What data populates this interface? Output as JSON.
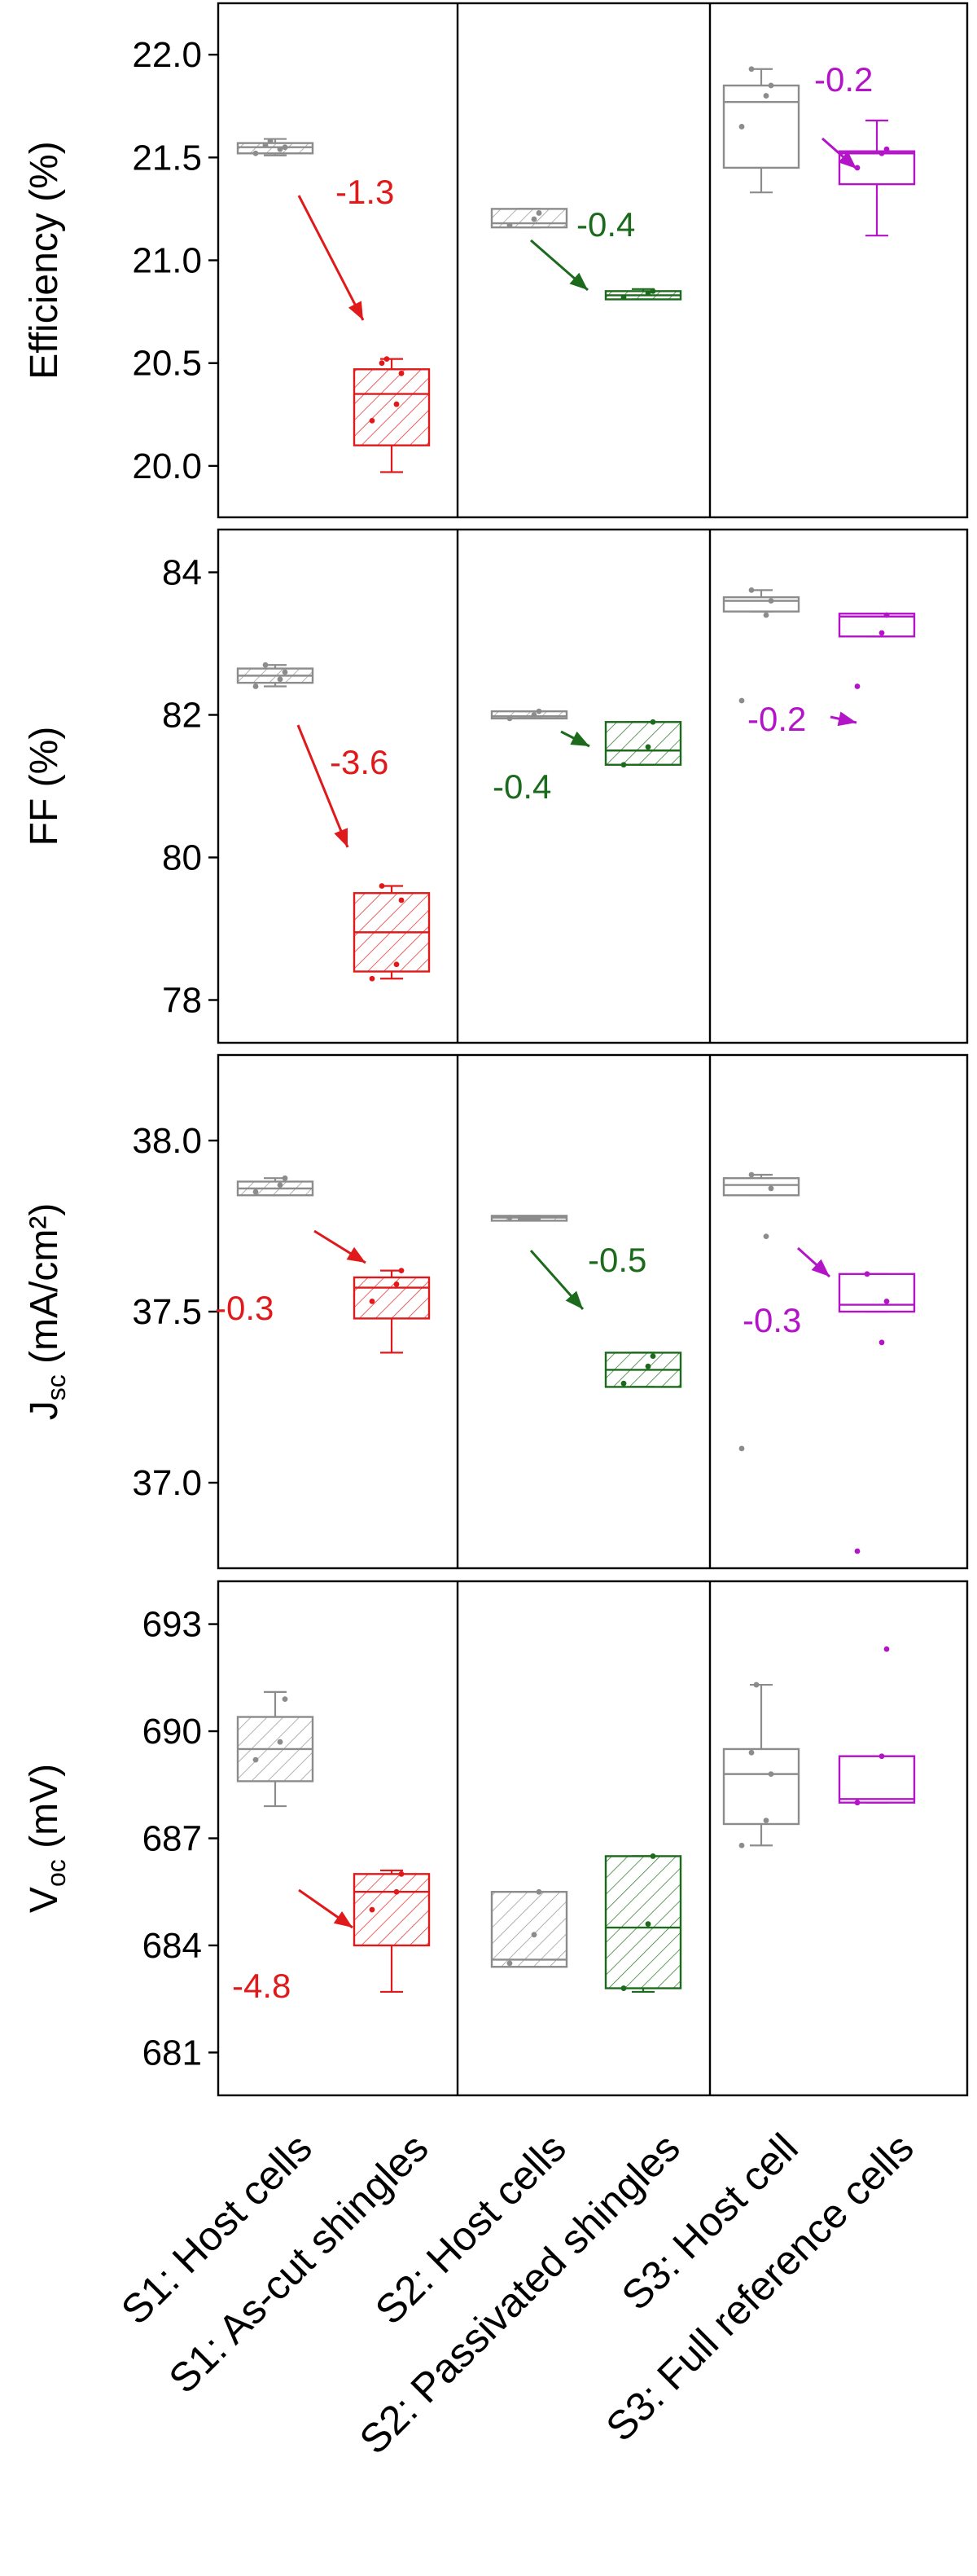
{
  "chart_data": {
    "type": "box",
    "categories": [
      "S1: Host cells",
      "S1: As-cut shingles",
      "S2: Host cells",
      "S2: Passivated shingles",
      "S3: Host cell",
      "S3: Full reference cells"
    ],
    "group_colors": [
      "#8c8c8c",
      "#e0191b",
      "#8c8c8c",
      "#1c6b1c",
      "#8c8c8c",
      "#b414c8"
    ],
    "hatched": [
      true,
      true,
      true,
      true,
      false,
      false
    ],
    "panels": [
      {
        "ylabel": "Efficiency (%)",
        "ylim": [
          19.75,
          22.25
        ],
        "yticks": [
          "20.0",
          "20.5",
          "21.0",
          "21.5",
          "22.0"
        ],
        "ytick_values": [
          20.0,
          20.5,
          21.0,
          21.5,
          22.0
        ],
        "boxes": [
          {
            "whisker_low": 21.51,
            "q1": 21.52,
            "median": 21.55,
            "q3": 21.57,
            "whisker_high": 21.59,
            "points": [
              21.52,
              21.54,
              21.55,
              21.56,
              21.58
            ]
          },
          {
            "whisker_low": 19.97,
            "q1": 20.1,
            "median": 20.35,
            "q3": 20.47,
            "whisker_high": 20.52,
            "points": [
              20.22,
              20.3,
              20.45,
              20.5,
              20.52
            ]
          },
          {
            "whisker_low": 21.16,
            "q1": 21.16,
            "median": 21.18,
            "q3": 21.25,
            "whisker_high": 21.25,
            "points": [
              21.17,
              21.2,
              21.23
            ]
          },
          {
            "whisker_low": 20.81,
            "q1": 20.81,
            "median": 20.83,
            "q3": 20.85,
            "whisker_high": 20.86,
            "points": [
              20.82,
              20.84,
              20.85
            ]
          },
          {
            "whisker_low": 21.33,
            "q1": 21.45,
            "median": 21.77,
            "q3": 21.85,
            "whisker_high": 21.93,
            "points": [
              21.65,
              21.8,
              21.85,
              21.93
            ]
          },
          {
            "whisker_low": 21.12,
            "q1": 21.37,
            "median": 21.52,
            "q3": 21.53,
            "whisker_high": 21.68,
            "points": [
              21.45,
              21.52,
              21.54
            ]
          }
        ],
        "annotations": [
          {
            "text": "-1.3",
            "color": "#e0191b"
          },
          {
            "text": "-0.4",
            "color": "#1c6b1c"
          },
          {
            "text": "-0.2",
            "color": "#b414c8"
          }
        ]
      },
      {
        "ylabel": "FF (%)",
        "ylim": [
          77.4,
          84.6
        ],
        "yticks": [
          "78",
          "80",
          "82",
          "84"
        ],
        "ytick_values": [
          78,
          80,
          82,
          84
        ],
        "boxes": [
          {
            "whisker_low": 82.4,
            "q1": 82.45,
            "median": 82.55,
            "q3": 82.65,
            "whisker_high": 82.7,
            "points": [
              82.4,
              82.5,
              82.6,
              82.7
            ]
          },
          {
            "whisker_low": 78.3,
            "q1": 78.4,
            "median": 78.95,
            "q3": 79.5,
            "whisker_high": 79.6,
            "points": [
              78.3,
              78.5,
              79.4,
              79.6
            ]
          },
          {
            "whisker_low": 81.95,
            "q1": 81.95,
            "median": 81.98,
            "q3": 82.05,
            "whisker_high": 82.05,
            "points": [
              81.95,
              82.0,
              82.05
            ]
          },
          {
            "whisker_low": 81.3,
            "q1": 81.3,
            "median": 81.5,
            "q3": 81.9,
            "whisker_high": 81.9,
            "points": [
              81.3,
              81.55,
              81.9
            ]
          },
          {
            "whisker_low": 83.45,
            "q1": 83.45,
            "median": 83.6,
            "q3": 83.65,
            "whisker_high": 83.75,
            "points": [
              82.2,
              83.4,
              83.6,
              83.75
            ]
          },
          {
            "whisker_low": 83.1,
            "q1": 83.1,
            "median": 83.38,
            "q3": 83.42,
            "whisker_high": 83.42,
            "points": [
              82.4,
              83.15,
              83.4
            ]
          }
        ],
        "annotations": [
          {
            "text": "-3.6",
            "color": "#e0191b"
          },
          {
            "text": "-0.4",
            "color": "#1c6b1c"
          },
          {
            "text": "-0.2",
            "color": "#b414c8"
          }
        ]
      },
      {
        "ylabel": "Jsc (mA/cm²)",
        "ylabel_main": "J",
        "ylabel_sub": "sc",
        "ylabel_tail": " (mA/cm²)",
        "ylim": [
          36.75,
          38.25
        ],
        "yticks": [
          "37.0",
          "37.5",
          "38.0"
        ],
        "ytick_values": [
          37.0,
          37.5,
          38.0
        ],
        "boxes": [
          {
            "whisker_low": 37.84,
            "q1": 37.84,
            "median": 37.86,
            "q3": 37.88,
            "whisker_high": 37.89,
            "points": [
              37.85,
              37.87,
              37.89
            ]
          },
          {
            "whisker_low": 37.38,
            "q1": 37.48,
            "median": 37.57,
            "q3": 37.6,
            "whisker_high": 37.62,
            "points": [
              37.53,
              37.58,
              37.62
            ]
          },
          {
            "whisker_low": 37.77,
            "q1": 37.775,
            "median": 37.775,
            "q3": 37.78,
            "whisker_high": 37.78,
            "points": [
              37.775
            ]
          },
          {
            "whisker_low": 37.28,
            "q1": 37.28,
            "median": 37.33,
            "q3": 37.38,
            "whisker_high": 37.38,
            "points": [
              37.29,
              37.34,
              37.37
            ]
          },
          {
            "whisker_low": 37.84,
            "q1": 37.84,
            "median": 37.87,
            "q3": 37.89,
            "whisker_high": 37.9,
            "points": [
              37.1,
              37.72,
              37.86,
              37.9
            ]
          },
          {
            "whisker_low": 37.5,
            "q1": 37.5,
            "median": 37.52,
            "q3": 37.61,
            "whisker_high": 37.61,
            "points": [
              36.8,
              37.41,
              37.53,
              37.61
            ]
          }
        ],
        "annotations": [
          {
            "text": "-0.3",
            "color": "#e0191b"
          },
          {
            "text": "-0.5",
            "color": "#1c6b1c"
          },
          {
            "text": "-0.3",
            "color": "#b414c8"
          }
        ]
      },
      {
        "ylabel": "Voc (mV)",
        "ylabel_main": "V",
        "ylabel_sub": "oc",
        "ylabel_tail": " (mV)",
        "ylim": [
          679.8,
          694.2
        ],
        "yticks": [
          "681",
          "684",
          "687",
          "690",
          "693"
        ],
        "ytick_values": [
          681,
          684,
          687,
          690,
          693
        ],
        "boxes": [
          {
            "whisker_low": 687.9,
            "q1": 688.6,
            "median": 689.5,
            "q3": 690.4,
            "whisker_high": 691.1,
            "points": [
              689.2,
              689.7,
              690.9
            ]
          },
          {
            "whisker_low": 682.7,
            "q1": 684.0,
            "median": 685.5,
            "q3": 686.0,
            "whisker_high": 686.1,
            "points": [
              685.0,
              685.5,
              686.0
            ]
          },
          {
            "whisker_low": 683.4,
            "q1": 683.4,
            "median": 683.6,
            "q3": 685.5,
            "whisker_high": 685.5,
            "points": [
              683.5,
              684.3,
              685.5
            ]
          },
          {
            "whisker_low": 682.7,
            "q1": 682.8,
            "median": 684.5,
            "q3": 686.5,
            "whisker_high": 686.5,
            "points": [
              682.8,
              684.6,
              686.5
            ]
          },
          {
            "whisker_low": 686.8,
            "q1": 687.4,
            "median": 688.8,
            "q3": 689.5,
            "whisker_high": 691.3,
            "points": [
              686.8,
              687.5,
              688.8,
              689.4,
              691.3
            ]
          },
          {
            "whisker_low": 688.0,
            "q1": 688.0,
            "median": 688.1,
            "q3": 689.3,
            "whisker_high": 689.3,
            "points": [
              688.0,
              689.3,
              692.3
            ]
          }
        ],
        "annotations": [
          {
            "text": "-4.8",
            "color": "#e0191b"
          }
        ]
      }
    ]
  }
}
